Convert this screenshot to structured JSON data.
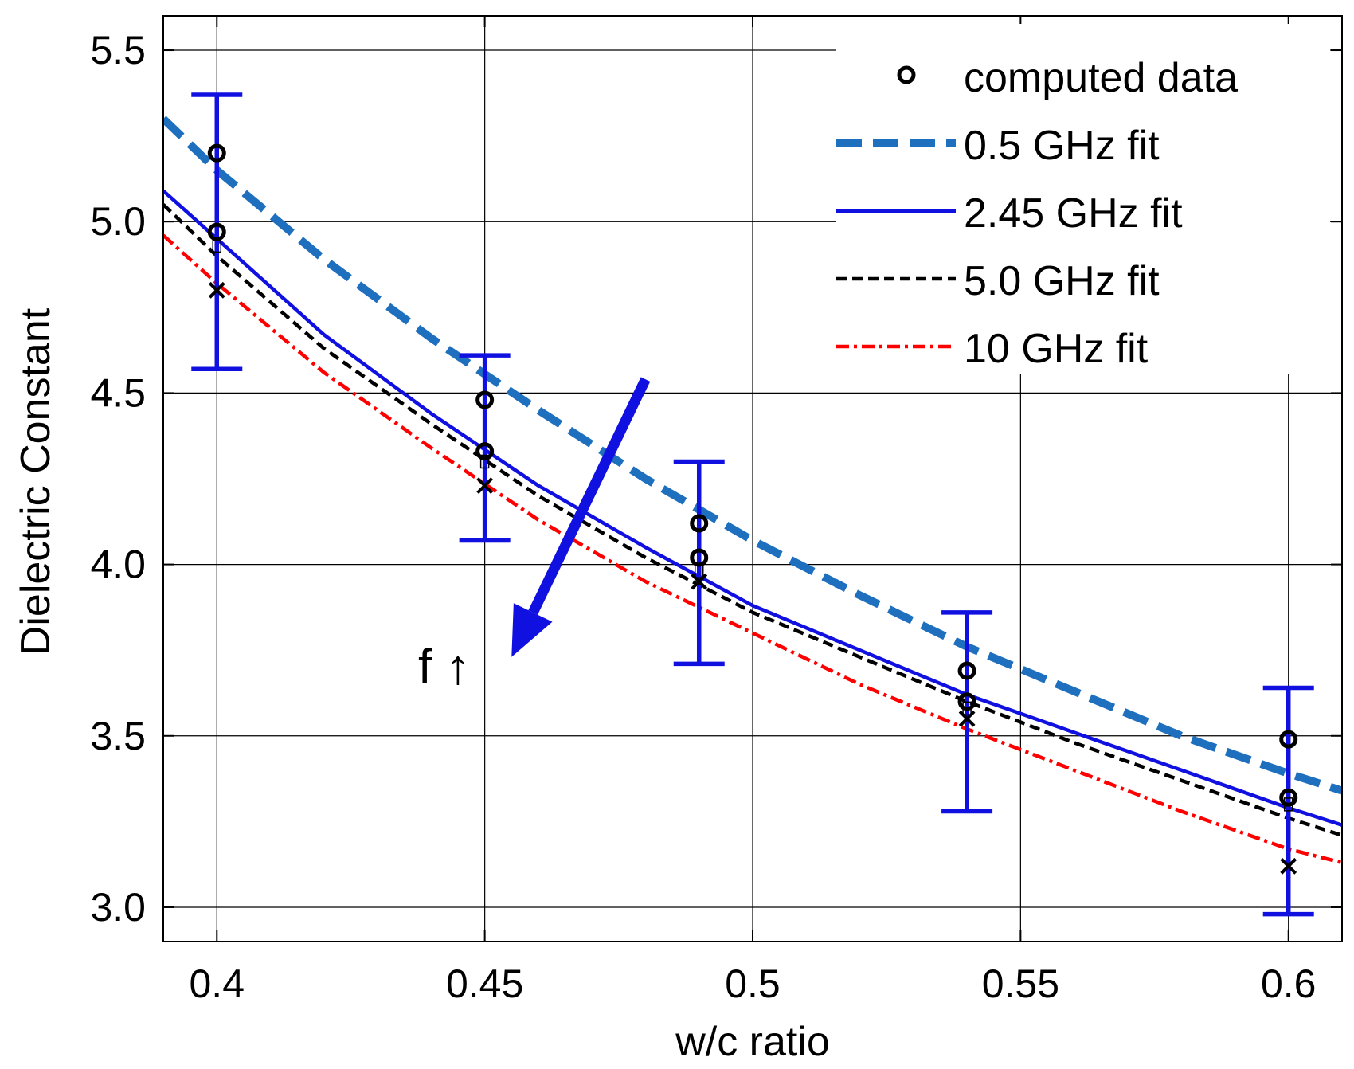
{
  "chart_data": {
    "type": "line",
    "title": "",
    "xlabel": "w/c ratio",
    "ylabel": "Dielectric Constant",
    "xlim": [
      0.39,
      0.61
    ],
    "ylim": [
      2.9,
      5.6
    ],
    "xticks": [
      0.4,
      0.45,
      0.5,
      0.55,
      0.6
    ],
    "xtick_labels": [
      "0.4",
      "0.45",
      "0.5",
      "0.55",
      "0.6"
    ],
    "yticks": [
      3.0,
      3.5,
      4.0,
      4.5,
      5.0,
      5.5
    ],
    "ytick_labels": [
      "3.0",
      "3.5",
      "4.0",
      "4.5",
      "5.0",
      "5.5"
    ],
    "grid": true,
    "legend_location": "top-right",
    "series": [
      {
        "name": "0.5 GHz fit",
        "style": "dashed-thick",
        "color": "#1f6fbf",
        "x": [
          0.39,
          0.4,
          0.42,
          0.44,
          0.46,
          0.48,
          0.5,
          0.52,
          0.54,
          0.56,
          0.58,
          0.6,
          0.61
        ],
        "y": [
          5.3,
          5.15,
          4.89,
          4.66,
          4.45,
          4.25,
          4.07,
          3.91,
          3.76,
          3.63,
          3.5,
          3.39,
          3.34
        ]
      },
      {
        "name": "2.45 GHz fit",
        "style": "solid",
        "color": "#1010e0",
        "x": [
          0.39,
          0.4,
          0.42,
          0.44,
          0.46,
          0.48,
          0.5,
          0.52,
          0.54,
          0.56,
          0.58,
          0.6,
          0.61
        ],
        "y": [
          5.09,
          4.95,
          4.67,
          4.44,
          4.23,
          4.05,
          3.88,
          3.75,
          3.62,
          3.51,
          3.4,
          3.29,
          3.24
        ]
      },
      {
        "name": "5.0 GHz fit",
        "style": "dashed-thin",
        "color": "#000000",
        "x": [
          0.39,
          0.4,
          0.42,
          0.44,
          0.46,
          0.48,
          0.5,
          0.52,
          0.54,
          0.56,
          0.58,
          0.6,
          0.61
        ],
        "y": [
          5.05,
          4.9,
          4.63,
          4.41,
          4.2,
          4.02,
          3.86,
          3.73,
          3.6,
          3.48,
          3.37,
          3.26,
          3.21
        ]
      },
      {
        "name": "10 GHz fit",
        "style": "dashdot",
        "color": "#ff0000",
        "x": [
          0.39,
          0.4,
          0.42,
          0.44,
          0.46,
          0.48,
          0.5,
          0.52,
          0.54,
          0.56,
          0.58,
          0.6,
          0.61
        ],
        "y": [
          4.96,
          4.82,
          4.56,
          4.34,
          4.13,
          3.95,
          3.8,
          3.65,
          3.52,
          3.4,
          3.28,
          3.17,
          3.13
        ]
      }
    ],
    "computed_data": {
      "name": "computed data",
      "points": [
        {
          "x": 0.4,
          "values": [
            5.2,
            4.97,
            4.93,
            4.8
          ]
        },
        {
          "x": 0.45,
          "values": [
            4.48,
            4.33,
            4.3,
            4.23
          ]
        },
        {
          "x": 0.49,
          "values": [
            4.12,
            4.02,
            3.98,
            3.95
          ]
        },
        {
          "x": 0.54,
          "values": [
            3.69,
            3.6,
            3.58,
            3.55
          ]
        },
        {
          "x": 0.6,
          "values": [
            3.49,
            3.32,
            3.3,
            3.12
          ]
        }
      ]
    },
    "error_bars": [
      {
        "x": 0.4,
        "low": 4.57,
        "high": 5.37
      },
      {
        "x": 0.45,
        "low": 4.07,
        "high": 4.61
      },
      {
        "x": 0.49,
        "low": 3.71,
        "high": 4.3
      },
      {
        "x": 0.54,
        "low": 3.28,
        "high": 3.86
      },
      {
        "x": 0.6,
        "low": 2.98,
        "high": 3.64
      }
    ],
    "annotation": {
      "text": "f ↑",
      "arrow_from": {
        "x": 0.48,
        "y": 4.54
      },
      "arrow_to": {
        "x": 0.455,
        "y": 3.73
      },
      "arrow_color": "#1010e0"
    }
  }
}
